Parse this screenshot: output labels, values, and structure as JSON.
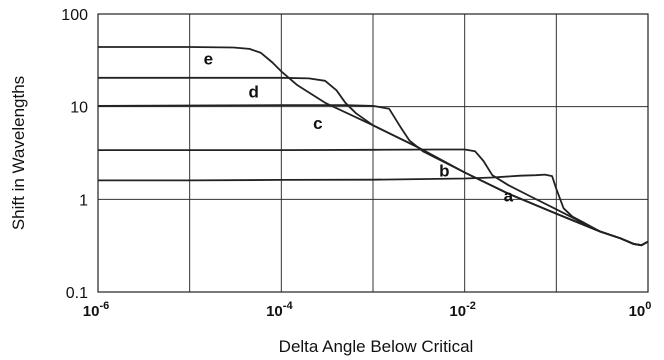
{
  "chart_data": {
    "type": "line",
    "title": "",
    "xlabel": "Delta Angle Below Critical",
    "ylabel": "Shift in Wavelengths",
    "xscale": "log",
    "yscale": "log",
    "xlim": [
      1e-06,
      1
    ],
    "ylim": [
      0.1,
      100
    ],
    "grid": true,
    "legend": "none",
    "x_ticks": [
      {
        "base": "10",
        "exp": "-6"
      },
      {
        "base": "10",
        "exp": "-4"
      },
      {
        "base": "10",
        "exp": "-2"
      },
      {
        "base": "10",
        "exp": "0"
      }
    ],
    "x_tick_values": [
      1e-06,
      0.0001,
      0.01,
      1
    ],
    "x_grid": [
      1e-06,
      1e-05,
      0.0001,
      0.001,
      0.01,
      0.1,
      1
    ],
    "y_ticks": [
      "0.1",
      "1",
      "10",
      "100"
    ],
    "y_tick_values": [
      0.1,
      1,
      10,
      100
    ],
    "series": [
      {
        "label": "a",
        "label_at": [
          0.03,
          1.1
        ],
        "x": [
          1e-06,
          1e-05,
          0.0001,
          0.001,
          0.01,
          0.02,
          0.04,
          0.06,
          0.075,
          0.09,
          0.1,
          0.12,
          0.15,
          0.2,
          0.3,
          0.5,
          0.7,
          0.85,
          1
        ],
        "y": [
          1.6,
          1.6,
          1.62,
          1.63,
          1.68,
          1.72,
          1.8,
          1.82,
          1.85,
          1.78,
          1.3,
          0.8,
          0.65,
          0.56,
          0.45,
          0.38,
          0.33,
          0.32,
          0.35
        ]
      },
      {
        "label": "b",
        "label_at": [
          0.006,
          2.05
        ],
        "x": [
          1e-06,
          1e-05,
          0.0001,
          0.001,
          0.005,
          0.01,
          0.013,
          0.016,
          0.02,
          0.03,
          0.05,
          0.1,
          0.2,
          0.3,
          0.5,
          0.7,
          0.85,
          1
        ],
        "y": [
          3.4,
          3.4,
          3.4,
          3.42,
          3.45,
          3.45,
          3.3,
          2.6,
          1.82,
          1.42,
          1.1,
          0.78,
          0.55,
          0.45,
          0.38,
          0.33,
          0.32,
          0.35
        ]
      },
      {
        "label": "c",
        "label_at": [
          0.00025,
          6.7
        ],
        "x": [
          1e-06,
          1e-05,
          0.0001,
          0.0005,
          0.001,
          0.0015,
          0.002,
          0.0025,
          0.0035,
          0.01,
          0.03,
          0.1,
          0.3,
          0.5,
          0.7,
          0.85,
          1
        ],
        "y": [
          10.2,
          10.3,
          10.4,
          10.4,
          10.2,
          9.5,
          6.0,
          4.3,
          3.3,
          1.95,
          1.15,
          0.7,
          0.45,
          0.38,
          0.33,
          0.32,
          0.35
        ]
      },
      {
        "label": "d",
        "label_at": [
          5e-05,
          14.5
        ],
        "x": [
          1e-06,
          1e-05,
          0.0001,
          0.0002,
          0.0003,
          0.0004,
          0.0005,
          0.00065,
          0.001,
          0.003,
          0.01,
          0.03,
          0.1,
          0.3,
          0.5,
          0.7,
          0.85,
          1
        ],
        "y": [
          20.5,
          20.5,
          20.5,
          20.2,
          19.0,
          15.0,
          11.0,
          8.5,
          6.3,
          3.7,
          1.95,
          1.15,
          0.7,
          0.45,
          0.38,
          0.33,
          0.32,
          0.35
        ]
      },
      {
        "label": "e",
        "label_at": [
          1.6e-05,
          33
        ],
        "x": [
          1e-06,
          1e-05,
          3e-05,
          4.5e-05,
          6e-05,
          8e-05,
          0.0001,
          0.00015,
          0.0003,
          0.001,
          0.003,
          0.01,
          0.03,
          0.1,
          0.3,
          0.5,
          0.7,
          0.85,
          1
        ],
        "y": [
          44,
          44,
          43.5,
          42,
          38,
          30,
          24,
          17,
          11,
          6.3,
          3.7,
          1.95,
          1.15,
          0.7,
          0.45,
          0.38,
          0.33,
          0.32,
          0.35
        ]
      }
    ]
  }
}
